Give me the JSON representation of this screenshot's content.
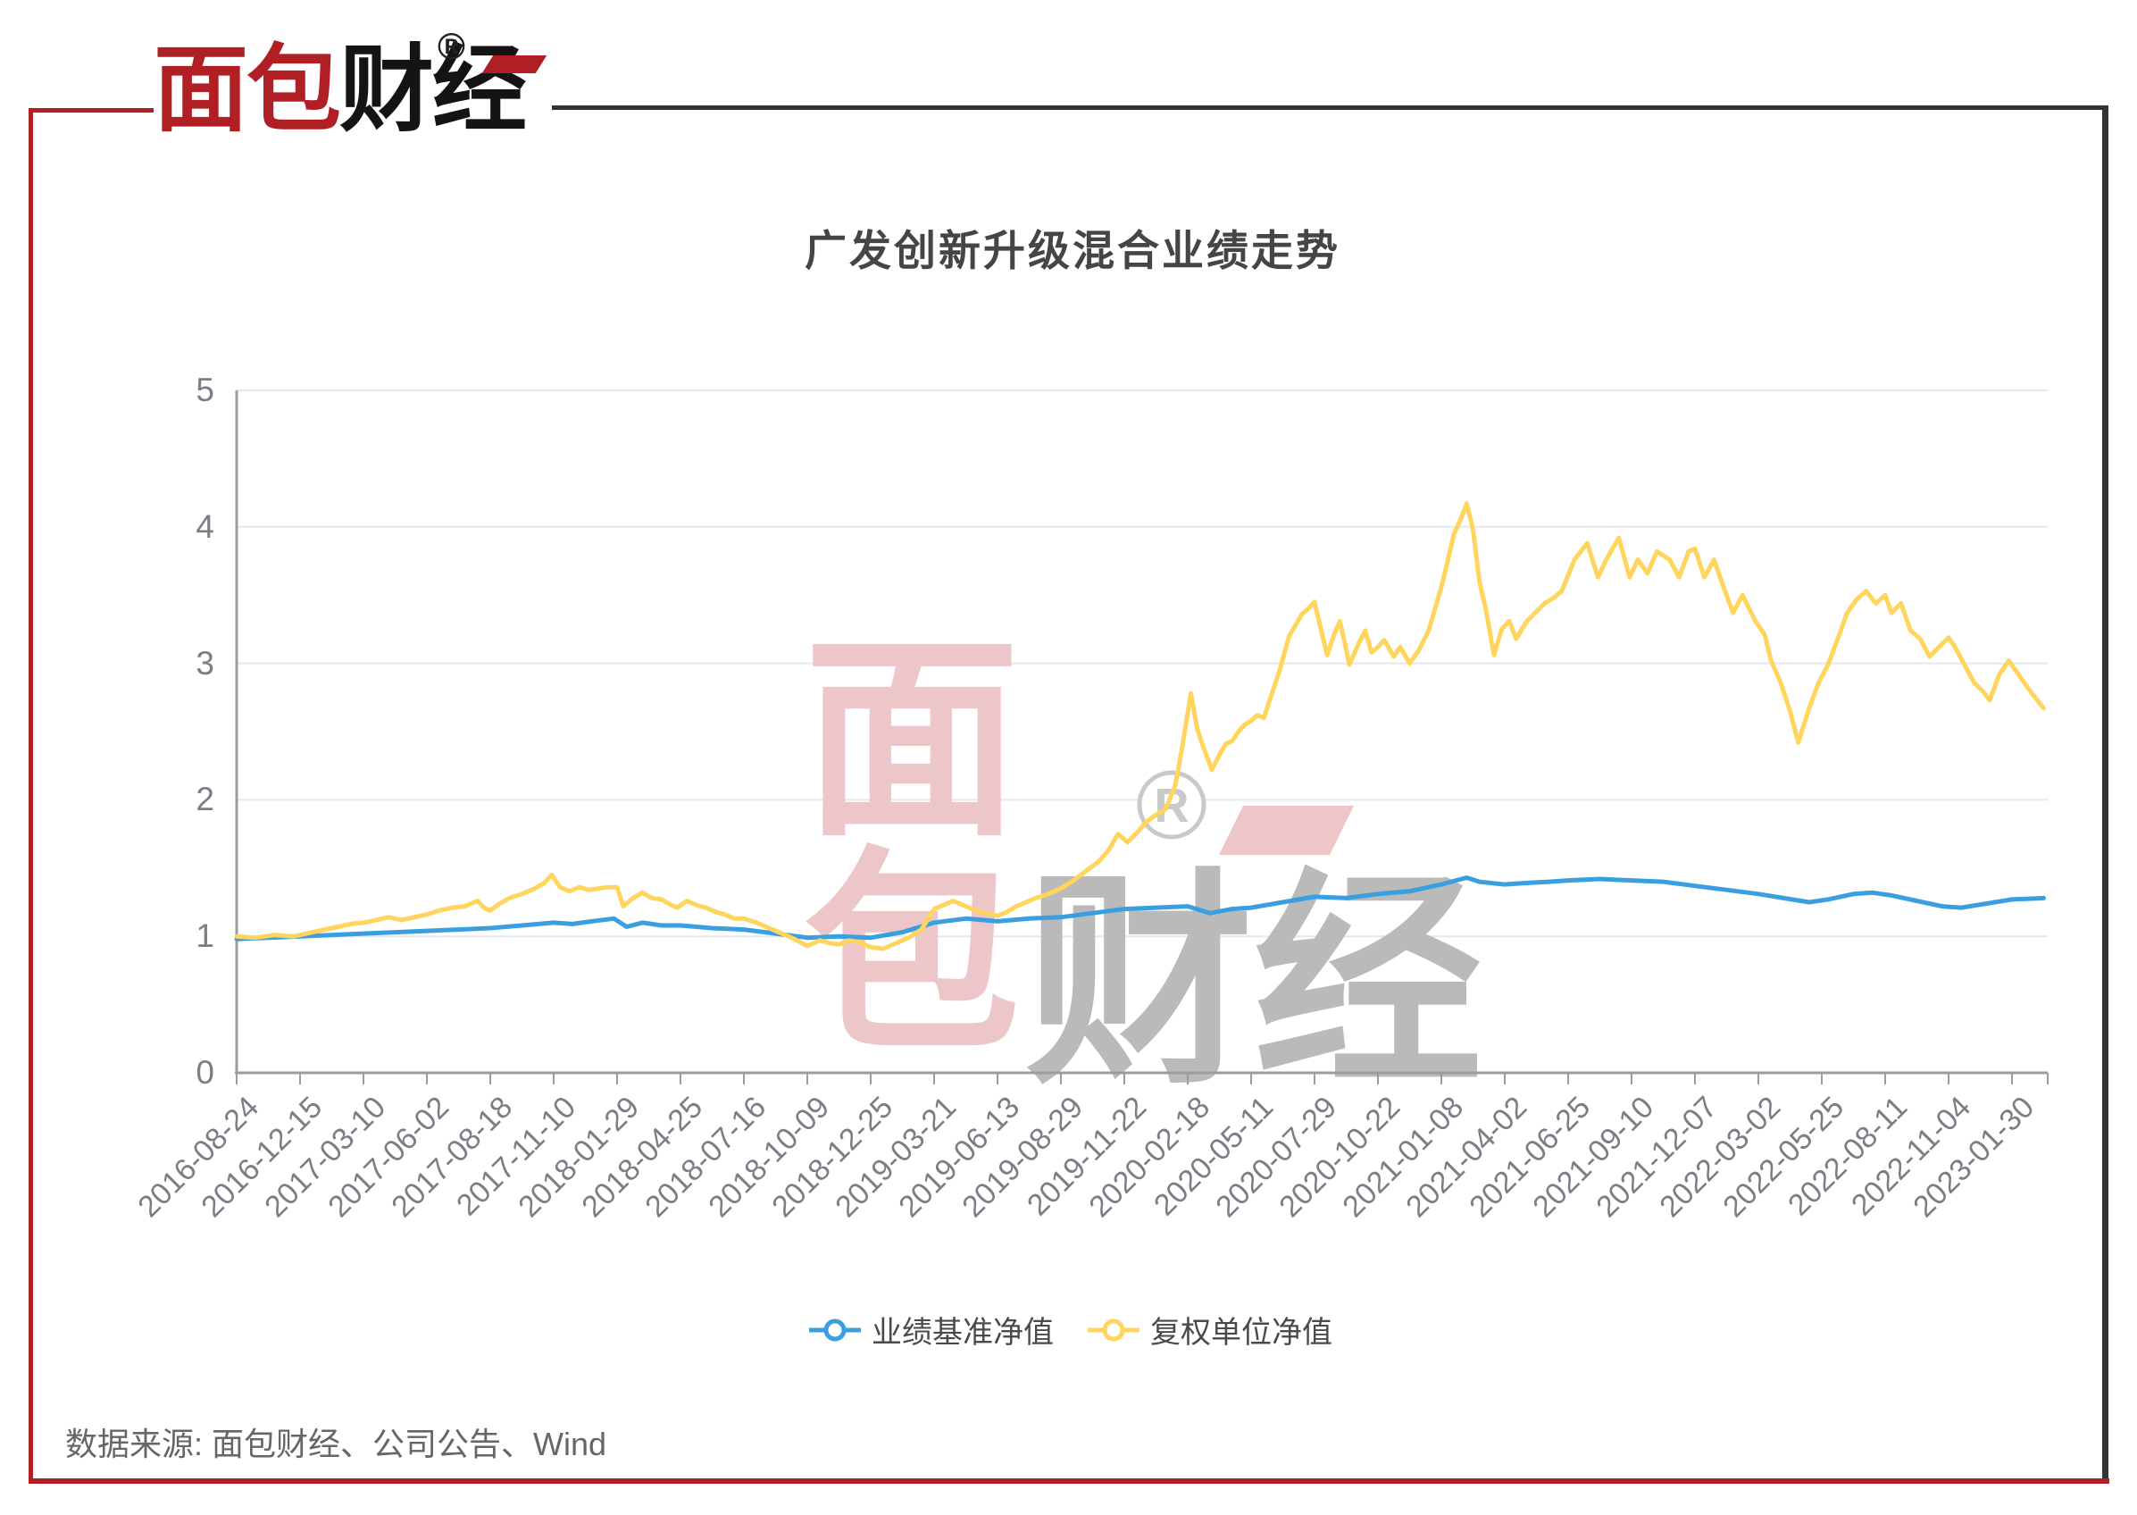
{
  "page": {
    "accent_red": "#b01f24",
    "accent_dark": "#333333",
    "background": "#ffffff"
  },
  "logo": {
    "text_red": "面包",
    "text_dark": "财经",
    "registered_mark": "®"
  },
  "watermark": {
    "char_top": "面",
    "char_bottom": "包",
    "text_right": "财经",
    "registered": "R",
    "pink": "#ecc6c8",
    "gray": "#bababa",
    "ring": "#c9c9c9"
  },
  "footer": {
    "source_text": "数据来源: 面包财经、公司公告、Wind"
  },
  "chart_data": {
    "type": "line",
    "title": "广发创新升级混合业绩走势",
    "xlabel": "",
    "ylabel": "",
    "ylim": [
      0,
      5
    ],
    "y_ticks": [
      0,
      1,
      2,
      3,
      4,
      5
    ],
    "grid": true,
    "legend_position": "bottom",
    "axis_color": "#989ca3",
    "grid_color": "#e3e8f2",
    "x_tick_labels": [
      "2016-08-24",
      "2016-12-15",
      "2017-03-10",
      "2017-06-02",
      "2017-08-18",
      "2017-11-10",
      "2018-01-29",
      "2018-04-25",
      "2018-07-16",
      "2018-10-09",
      "2018-12-25",
      "2019-03-21",
      "2019-06-13",
      "2019-08-29",
      "2019-11-22",
      "2020-02-18",
      "2020-05-11",
      "2020-07-29",
      "2020-10-22",
      "2021-01-08",
      "2021-04-02",
      "2021-06-25",
      "2021-09-10",
      "2021-12-07",
      "2022-03-02",
      "2022-05-25",
      "2022-08-11",
      "2022-11-04",
      "2023-01-30"
    ],
    "series": [
      {
        "name": "业绩基准净值",
        "color": "#3a9fe0",
        "points": [
          [
            0,
            0.98
          ],
          [
            0.5,
            0.99
          ],
          [
            1,
            1.0
          ],
          [
            1.5,
            1.01
          ],
          [
            2,
            1.02
          ],
          [
            2.5,
            1.03
          ],
          [
            3,
            1.04
          ],
          [
            3.5,
            1.05
          ],
          [
            4,
            1.06
          ],
          [
            4.5,
            1.08
          ],
          [
            5,
            1.1
          ],
          [
            5.3,
            1.09
          ],
          [
            5.6,
            1.11
          ],
          [
            5.95,
            1.13
          ],
          [
            6.15,
            1.07
          ],
          [
            6.4,
            1.1
          ],
          [
            6.7,
            1.08
          ],
          [
            7,
            1.08
          ],
          [
            7.5,
            1.06
          ],
          [
            8,
            1.05
          ],
          [
            8.5,
            1.02
          ],
          [
            9,
            0.99
          ],
          [
            9.5,
            1.0
          ],
          [
            10,
            0.99
          ],
          [
            10.5,
            1.03
          ],
          [
            11,
            1.1
          ],
          [
            11.5,
            1.13
          ],
          [
            12,
            1.11
          ],
          [
            12.5,
            1.13
          ],
          [
            13,
            1.14
          ],
          [
            13.5,
            1.17
          ],
          [
            14,
            1.2
          ],
          [
            14.5,
            1.21
          ],
          [
            15,
            1.22
          ],
          [
            15.35,
            1.17
          ],
          [
            15.7,
            1.2
          ],
          [
            16,
            1.21
          ],
          [
            16.5,
            1.25
          ],
          [
            17,
            1.29
          ],
          [
            17.5,
            1.28
          ],
          [
            18,
            1.31
          ],
          [
            18.5,
            1.33
          ],
          [
            19,
            1.38
          ],
          [
            19.4,
            1.43
          ],
          [
            19.6,
            1.4
          ],
          [
            20,
            1.38
          ],
          [
            20.3,
            1.39
          ],
          [
            20.7,
            1.4
          ],
          [
            21,
            1.41
          ],
          [
            21.5,
            1.42
          ],
          [
            22,
            1.41
          ],
          [
            22.5,
            1.4
          ],
          [
            23,
            1.37
          ],
          [
            23.5,
            1.34
          ],
          [
            24,
            1.31
          ],
          [
            24.4,
            1.28
          ],
          [
            24.8,
            1.25
          ],
          [
            25.1,
            1.27
          ],
          [
            25.5,
            1.31
          ],
          [
            25.8,
            1.32
          ],
          [
            26.1,
            1.3
          ],
          [
            26.5,
            1.26
          ],
          [
            26.9,
            1.22
          ],
          [
            27.2,
            1.21
          ],
          [
            27.6,
            1.24
          ],
          [
            28,
            1.27
          ],
          [
            28.5,
            1.28
          ]
        ]
      },
      {
        "name": "复权单位净值",
        "color": "#ffd55e",
        "points": [
          [
            0,
            1.0
          ],
          [
            0.3,
            0.99
          ],
          [
            0.6,
            1.01
          ],
          [
            0.9,
            1.0
          ],
          [
            1.2,
            1.03
          ],
          [
            1.5,
            1.06
          ],
          [
            1.8,
            1.09
          ],
          [
            2,
            1.1
          ],
          [
            2.2,
            1.12
          ],
          [
            2.4,
            1.14
          ],
          [
            2.6,
            1.12
          ],
          [
            2.8,
            1.14
          ],
          [
            3,
            1.16
          ],
          [
            3.2,
            1.19
          ],
          [
            3.4,
            1.21
          ],
          [
            3.6,
            1.22
          ],
          [
            3.8,
            1.26
          ],
          [
            3.9,
            1.21
          ],
          [
            4,
            1.19
          ],
          [
            4.15,
            1.24
          ],
          [
            4.3,
            1.28
          ],
          [
            4.5,
            1.31
          ],
          [
            4.7,
            1.35
          ],
          [
            4.85,
            1.39
          ],
          [
            4.97,
            1.45
          ],
          [
            5.1,
            1.36
          ],
          [
            5.25,
            1.33
          ],
          [
            5.4,
            1.36
          ],
          [
            5.55,
            1.34
          ],
          [
            5.7,
            1.35
          ],
          [
            5.85,
            1.36
          ],
          [
            6,
            1.36
          ],
          [
            6.1,
            1.22
          ],
          [
            6.25,
            1.28
          ],
          [
            6.4,
            1.32
          ],
          [
            6.55,
            1.28
          ],
          [
            6.7,
            1.27
          ],
          [
            6.85,
            1.23
          ],
          [
            6.95,
            1.21
          ],
          [
            7.1,
            1.26
          ],
          [
            7.25,
            1.23
          ],
          [
            7.4,
            1.21
          ],
          [
            7.55,
            1.18
          ],
          [
            7.7,
            1.16
          ],
          [
            7.85,
            1.13
          ],
          [
            8,
            1.13
          ],
          [
            8.2,
            1.1
          ],
          [
            8.4,
            1.06
          ],
          [
            8.6,
            1.02
          ],
          [
            8.8,
            0.98
          ],
          [
            9,
            0.93
          ],
          [
            9.2,
            0.97
          ],
          [
            9.35,
            0.95
          ],
          [
            9.5,
            0.94
          ],
          [
            9.65,
            0.97
          ],
          [
            9.8,
            0.96
          ],
          [
            10,
            0.92
          ],
          [
            10.2,
            0.91
          ],
          [
            10.4,
            0.95
          ],
          [
            10.6,
            0.99
          ],
          [
            10.8,
            1.05
          ],
          [
            11,
            1.2
          ],
          [
            11.15,
            1.23
          ],
          [
            11.3,
            1.26
          ],
          [
            11.45,
            1.23
          ],
          [
            11.6,
            1.2
          ],
          [
            11.8,
            1.17
          ],
          [
            12,
            1.15
          ],
          [
            12.15,
            1.18
          ],
          [
            12.3,
            1.22
          ],
          [
            12.45,
            1.25
          ],
          [
            12.6,
            1.28
          ],
          [
            12.8,
            1.31
          ],
          [
            13,
            1.35
          ],
          [
            13.2,
            1.41
          ],
          [
            13.4,
            1.48
          ],
          [
            13.6,
            1.55
          ],
          [
            13.75,
            1.63
          ],
          [
            13.9,
            1.75
          ],
          [
            14.05,
            1.69
          ],
          [
            14.2,
            1.76
          ],
          [
            14.35,
            1.84
          ],
          [
            14.5,
            1.89
          ],
          [
            14.65,
            1.93
          ],
          [
            14.8,
            2.1
          ],
          [
            14.9,
            2.35
          ],
          [
            15.05,
            2.78
          ],
          [
            15.15,
            2.52
          ],
          [
            15.25,
            2.38
          ],
          [
            15.38,
            2.22
          ],
          [
            15.5,
            2.33
          ],
          [
            15.6,
            2.41
          ],
          [
            15.7,
            2.43
          ],
          [
            15.8,
            2.5
          ],
          [
            15.9,
            2.55
          ],
          [
            16,
            2.58
          ],
          [
            16.1,
            2.62
          ],
          [
            16.2,
            2.6
          ],
          [
            16.3,
            2.74
          ],
          [
            16.45,
            2.95
          ],
          [
            16.6,
            3.2
          ],
          [
            16.8,
            3.36
          ],
          [
            16.9,
            3.4
          ],
          [
            17,
            3.45
          ],
          [
            17.1,
            3.25
          ],
          [
            17.2,
            3.06
          ],
          [
            17.3,
            3.2
          ],
          [
            17.4,
            3.31
          ],
          [
            17.5,
            3.1
          ],
          [
            17.55,
            2.99
          ],
          [
            17.7,
            3.15
          ],
          [
            17.8,
            3.24
          ],
          [
            17.9,
            3.08
          ],
          [
            18,
            3.12
          ],
          [
            18.1,
            3.17
          ],
          [
            18.25,
            3.05
          ],
          [
            18.35,
            3.12
          ],
          [
            18.5,
            3.0
          ],
          [
            18.65,
            3.1
          ],
          [
            18.8,
            3.24
          ],
          [
            18.9,
            3.4
          ],
          [
            19,
            3.56
          ],
          [
            19.1,
            3.75
          ],
          [
            19.2,
            3.95
          ],
          [
            19.3,
            4.05
          ],
          [
            19.4,
            4.17
          ],
          [
            19.5,
            3.98
          ],
          [
            19.6,
            3.6
          ],
          [
            19.7,
            3.4
          ],
          [
            19.83,
            3.06
          ],
          [
            19.95,
            3.25
          ],
          [
            20.07,
            3.31
          ],
          [
            20.18,
            3.18
          ],
          [
            20.35,
            3.31
          ],
          [
            20.5,
            3.38
          ],
          [
            20.63,
            3.44
          ],
          [
            20.77,
            3.48
          ],
          [
            20.9,
            3.53
          ],
          [
            21.1,
            3.76
          ],
          [
            21.3,
            3.88
          ],
          [
            21.47,
            3.63
          ],
          [
            21.6,
            3.76
          ],
          [
            21.8,
            3.92
          ],
          [
            21.97,
            3.63
          ],
          [
            22.1,
            3.76
          ],
          [
            22.25,
            3.66
          ],
          [
            22.4,
            3.82
          ],
          [
            22.6,
            3.76
          ],
          [
            22.75,
            3.63
          ],
          [
            22.9,
            3.82
          ],
          [
            23,
            3.84
          ],
          [
            23.15,
            3.63
          ],
          [
            23.3,
            3.76
          ],
          [
            23.45,
            3.56
          ],
          [
            23.6,
            3.37
          ],
          [
            23.75,
            3.5
          ],
          [
            23.95,
            3.31
          ],
          [
            24.1,
            3.21
          ],
          [
            24.2,
            3.02
          ],
          [
            24.35,
            2.86
          ],
          [
            24.5,
            2.65
          ],
          [
            24.63,
            2.42
          ],
          [
            24.8,
            2.67
          ],
          [
            24.95,
            2.86
          ],
          [
            25.1,
            2.99
          ],
          [
            25.3,
            3.24
          ],
          [
            25.4,
            3.37
          ],
          [
            25.55,
            3.47
          ],
          [
            25.7,
            3.53
          ],
          [
            25.85,
            3.44
          ],
          [
            26,
            3.5
          ],
          [
            26.1,
            3.37
          ],
          [
            26.25,
            3.44
          ],
          [
            26.4,
            3.24
          ],
          [
            26.55,
            3.18
          ],
          [
            26.7,
            3.05
          ],
          [
            26.85,
            3.12
          ],
          [
            27,
            3.19
          ],
          [
            27.1,
            3.12
          ],
          [
            27.25,
            2.99
          ],
          [
            27.4,
            2.86
          ],
          [
            27.55,
            2.79
          ],
          [
            27.65,
            2.73
          ],
          [
            27.8,
            2.92
          ],
          [
            27.95,
            3.02
          ],
          [
            28.1,
            2.92
          ],
          [
            28.25,
            2.82
          ],
          [
            28.4,
            2.73
          ],
          [
            28.5,
            2.67
          ]
        ]
      }
    ]
  }
}
